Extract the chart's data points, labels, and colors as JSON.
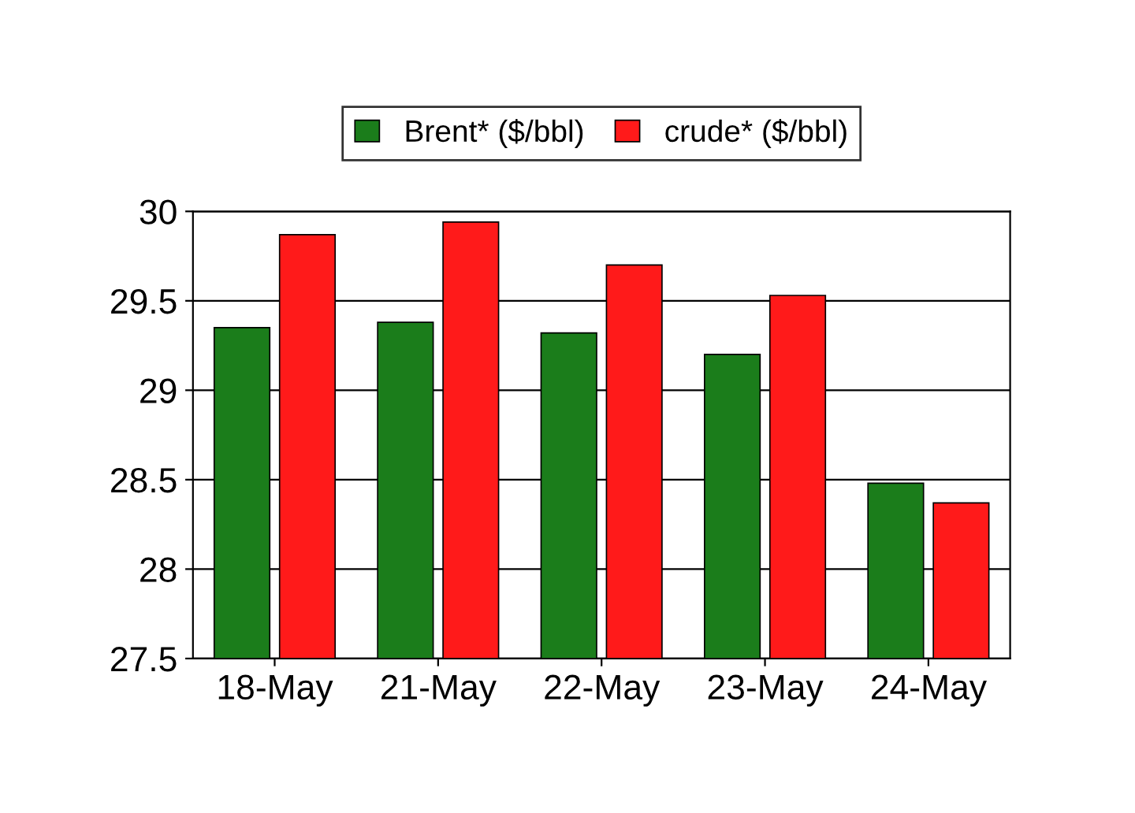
{
  "chart_data": {
    "type": "bar",
    "categories": [
      "18-May",
      "21-May",
      "22-May",
      "23-May",
      "24-May"
    ],
    "series": [
      {
        "name": "Brent* ($/bbl)",
        "color": "#1b7d1b",
        "values": [
          29.35,
          29.38,
          29.32,
          29.2,
          28.48
        ]
      },
      {
        "name": "crude* ($/bbl)",
        "color": "#ff1a1a",
        "values": [
          29.87,
          29.94,
          29.7,
          29.53,
          28.37
        ]
      }
    ],
    "ylim": [
      27.5,
      30
    ],
    "yticks": [
      27.5,
      28,
      28.5,
      29,
      29.5,
      30
    ],
    "grid": "y",
    "legend": "top"
  }
}
